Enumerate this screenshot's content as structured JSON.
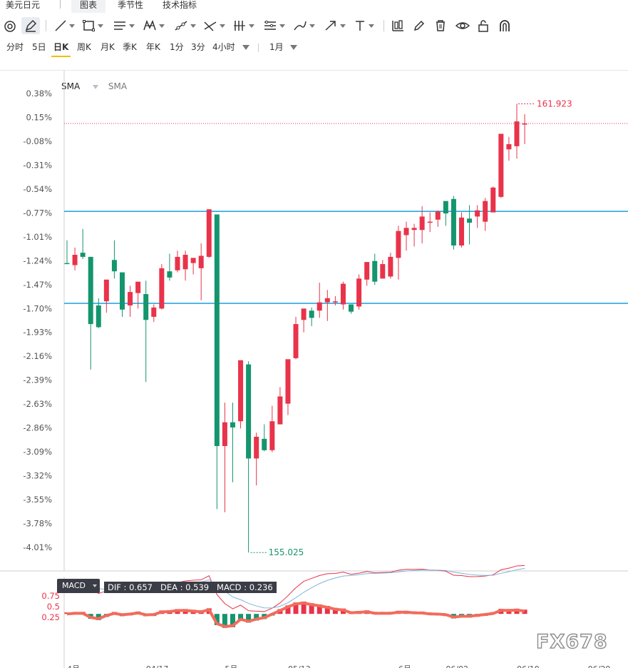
{
  "tabs": [
    {
      "label": "美元日元"
    },
    {
      "label": "图表"
    },
    {
      "label": "季节性"
    },
    {
      "label": "技术指标"
    }
  ],
  "toolbar": {
    "icons": [
      "magnet-icon",
      "pen-icon",
      "line-icon",
      "rectangle-icon",
      "parallel-lines-icon",
      "pattern-icon",
      "ray-icon",
      "fib-icon",
      "vertical-lines-icon",
      "gann-icon",
      "brush-icon",
      "arrow-icon",
      "text-icon",
      "chart-type-icon",
      "edit-icon",
      "trash-icon",
      "eye-icon",
      "lock-icon",
      "magnet-u-icon"
    ]
  },
  "periods": [
    {
      "label": "分时"
    },
    {
      "label": "5日"
    },
    {
      "label": "日K"
    },
    {
      "label": "周K"
    },
    {
      "label": "月K"
    },
    {
      "label": "季K"
    },
    {
      "label": "年K"
    },
    {
      "label": "1分"
    },
    {
      "label": "3分"
    },
    {
      "label": "4小时"
    },
    {
      "label": "1月"
    }
  ],
  "legend": {
    "sma1": "SMA",
    "sma2": "SMA"
  },
  "colors": {
    "up": "#e8334a",
    "down": "#14956e",
    "hline": "#29a8e0",
    "dif": "#e8334a",
    "dea": "#7fb4d8",
    "macd_line": "#f26b5b"
  },
  "chart_data": [
    {
      "type": "candlestick",
      "title": "美元日元",
      "y_tick_labels": [
        "0.38%",
        "0.15%",
        "-0.08%",
        "-0.31%",
        "-0.54%",
        "-0.77%",
        "-1.01%",
        "-1.24%",
        "-1.47%",
        "-1.70%",
        "-1.93%",
        "-2.16%",
        "-2.39%",
        "-2.63%",
        "-2.86%",
        "-3.09%",
        "-3.32%",
        "-3.55%",
        "-3.78%",
        "-4.01%"
      ],
      "ylim": [
        -4.01,
        0.38
      ],
      "x_tick_labels": [
        "4月",
        "04/17",
        "5月",
        "05/13",
        "6月",
        "06/02",
        "06/10",
        "06/20"
      ],
      "candles_pct": [
        [
          -1.26,
          -1.04,
          -1.26,
          -1.27
        ],
        [
          -1.28,
          -1.11,
          -1.33,
          -1.18
        ],
        [
          -1.16,
          -0.93,
          -1.22,
          -1.2
        ],
        [
          -1.2,
          -1.2,
          -2.29,
          -1.85
        ],
        [
          -1.67,
          -1.6,
          -1.89,
          -1.88
        ],
        [
          -1.63,
          -1.59,
          -1.74,
          -1.42
        ],
        [
          -1.23,
          -1.04,
          -1.41,
          -1.34
        ],
        [
          -1.35,
          -1.35,
          -1.78,
          -1.71
        ],
        [
          -1.67,
          -1.48,
          -1.78,
          -1.54
        ],
        [
          -1.55,
          -1.47,
          -1.7,
          -1.44
        ],
        [
          -1.56,
          -1.43,
          -2.41,
          -1.81
        ],
        [
          -1.78,
          -1.66,
          -1.83,
          -1.69
        ],
        [
          -1.7,
          -1.27,
          -1.71,
          -1.31
        ],
        [
          -1.34,
          -1.17,
          -1.43,
          -1.4
        ],
        [
          -1.33,
          -1.14,
          -1.35,
          -1.2
        ],
        [
          -1.32,
          -1.14,
          -1.43,
          -1.18
        ],
        [
          -1.26,
          -1.37,
          -1.23,
          -1.21
        ],
        [
          -1.31,
          -1.07,
          -1.62,
          -1.19
        ],
        [
          -1.2,
          -0.74,
          -1.21,
          -0.74
        ],
        [
          -0.79,
          -0.79,
          -3.64,
          -3.03
        ],
        [
          -3.03,
          -2.61,
          -3.67,
          -2.8
        ],
        [
          -2.8,
          -2.61,
          -3.38,
          -2.85
        ],
        [
          -2.79,
          -2.2,
          -2.86,
          -2.2
        ],
        [
          -2.24,
          -2.21,
          -4.06,
          -3.15
        ],
        [
          -3.15,
          -2.9,
          -3.41,
          -2.94
        ],
        [
          -2.96,
          -2.82,
          -3.08,
          -3.07
        ],
        [
          -3.07,
          -2.64,
          -3.09,
          -2.79
        ],
        [
          -2.82,
          -2.46,
          -2.79,
          -2.55
        ],
        [
          -2.62,
          -2.24,
          -2.73,
          -2.19
        ],
        [
          -2.18,
          -1.78,
          -2.19,
          -1.85
        ],
        [
          -1.81,
          -1.71,
          -1.93,
          -1.7
        ],
        [
          -1.72,
          -1.69,
          -1.87,
          -1.79
        ],
        [
          -1.72,
          -1.45,
          -1.79,
          -1.64
        ],
        [
          -1.64,
          -1.52,
          -1.82,
          -1.6
        ],
        [
          -1.63,
          -1.67,
          -1.58,
          -1.63
        ],
        [
          -1.66,
          -1.44,
          -1.71,
          -1.46
        ],
        [
          -1.66,
          -1.66,
          -1.75,
          -1.73
        ],
        [
          -1.68,
          -1.37,
          -1.71,
          -1.41
        ],
        [
          -1.42,
          -1.25,
          -1.48,
          -1.25
        ],
        [
          -1.24,
          -1.17,
          -1.47,
          -1.44
        ],
        [
          -1.41,
          -1.23,
          -1.41,
          -1.27
        ],
        [
          -1.39,
          -1.16,
          -1.41,
          -1.2
        ],
        [
          -1.21,
          -0.9,
          -1.42,
          -0.95
        ],
        [
          -0.99,
          -0.86,
          -1.14,
          -0.92
        ],
        [
          -0.94,
          -0.88,
          -1.1,
          -0.92
        ],
        [
          -0.94,
          -0.71,
          -1.07,
          -0.81
        ],
        [
          -0.87,
          -0.77,
          -0.96,
          -0.86
        ],
        [
          -0.84,
          -0.75,
          -0.91,
          -0.76
        ],
        [
          -0.66,
          -0.68,
          -0.9,
          -0.78
        ],
        [
          -0.64,
          -0.61,
          -1.13,
          -1.09
        ],
        [
          -1.09,
          -0.77,
          -1.11,
          -0.82
        ],
        [
          -0.83,
          -0.7,
          -1.08,
          -0.87
        ],
        [
          -0.81,
          -0.7,
          -0.92,
          -0.75
        ],
        [
          -0.86,
          -0.63,
          -0.95,
          -0.66
        ],
        [
          -0.77,
          -0.52,
          -0.77,
          -0.53
        ],
        [
          -0.62,
          -0.01,
          -0.63,
          -0.01
        ],
        [
          -0.16,
          -0.04,
          -0.27,
          -0.11
        ],
        [
          -0.13,
          0.28,
          -0.25,
          0.11
        ],
        [
          0.09,
          0.18,
          -0.11,
          0.09
        ]
      ],
      "marker_high": "161.923",
      "marker_low": "155.025",
      "horizontal_lines_pct": [
        -0.76,
        -1.65
      ]
    },
    {
      "type": "macd",
      "title": "MACD",
      "values": {
        "DIF": "0.657",
        "DEA": "0.539",
        "MACD": "0.236"
      },
      "y_tick_labels": [
        "0.75",
        "0.5",
        "0.25"
      ]
    }
  ],
  "watermark": "FX678"
}
